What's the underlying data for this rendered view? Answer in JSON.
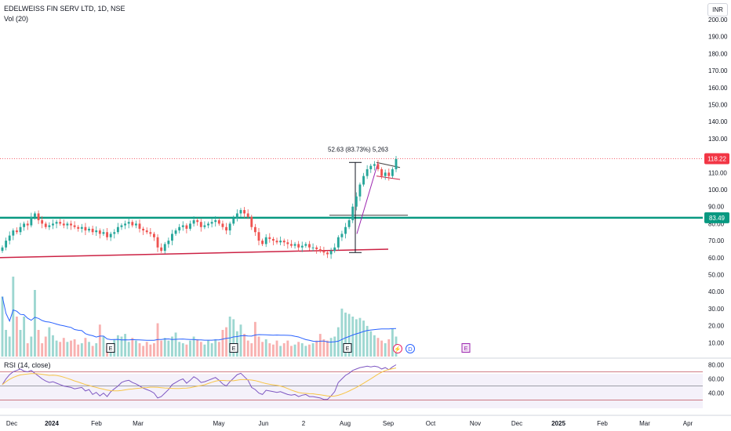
{
  "header": {
    "title": "EDELWEISS FIN SERV LTD, 1D, NSE",
    "volume_label": "Vol (20)",
    "currency": "INR"
  },
  "rsi_label": "RSI (14, close)",
  "measurement_label": "52.63 (83.73%) 5,263",
  "price_tags": {
    "last": "118.22",
    "level": "83.49"
  },
  "colors": {
    "up": "#26a69a",
    "down": "#ef5350",
    "level_line": "#089981",
    "trend_line": "#cc2244",
    "rsi_line": "#7e57c2",
    "rsi_ma": "#f7c548",
    "vol_ma": "#2962ff",
    "last_tag": "#f23645"
  },
  "markers": {
    "earnings": "E",
    "dividend": "D",
    "split": "⚡"
  },
  "chart_data": {
    "type": "candlestick",
    "y_ticks": [
      "200.00",
      "190.00",
      "180.00",
      "170.00",
      "160.00",
      "150.00",
      "140.00",
      "130.00",
      "120.00",
      "110.00",
      "100.00",
      "90.00",
      "80.00",
      "70.00",
      "60.00",
      "50.00",
      "40.00",
      "30.00",
      "20.00",
      "10.00"
    ],
    "ylim": [
      5,
      205
    ],
    "x_ticks": [
      "Dec",
      "2024",
      "Feb",
      "Mar",
      "May",
      "Jun",
      "2",
      "Aug",
      "Sep",
      "Oct",
      "Nov",
      "Dec",
      "2025",
      "Feb",
      "Mar",
      "Apr"
    ],
    "rsi_ticks": [
      "80.00",
      "60.00",
      "40.00"
    ],
    "rsi_range": [
      30,
      80
    ],
    "rsi_levels": [
      70,
      50,
      30
    ],
    "last_price": 118.22,
    "horizontal_level": 83.49,
    "measurement": {
      "from": 63,
      "to": 116
    },
    "close": [
      66,
      70,
      73,
      76,
      75,
      78,
      80,
      79,
      84,
      86,
      82,
      80,
      78,
      79,
      80,
      81,
      80,
      79,
      80,
      79,
      78,
      77,
      78,
      76,
      77,
      75,
      76,
      74,
      75,
      72,
      74,
      75,
      78,
      79,
      80,
      81,
      79,
      80,
      77,
      76,
      75,
      74,
      72,
      66,
      64,
      68,
      70,
      74,
      76,
      78,
      79,
      77,
      80,
      82,
      81,
      78,
      79,
      80,
      81,
      82,
      80,
      78,
      76,
      80,
      83,
      86,
      88,
      86,
      84,
      78,
      75,
      70,
      68,
      72,
      71,
      70,
      69,
      70,
      69,
      68,
      67,
      68,
      66,
      67,
      68,
      66,
      66,
      65,
      64,
      63,
      62,
      64,
      66,
      72,
      74,
      78,
      82,
      90,
      96,
      103,
      108,
      112,
      114,
      115,
      112,
      108,
      110,
      108,
      112,
      118
    ],
    "volume": [
      4.5,
      2,
      1.5,
      6,
      3,
      2,
      3,
      1,
      1.5,
      5,
      2,
      1,
      1.5,
      2.2,
      1.6,
      1.2,
      1.1,
      1.4,
      1.1,
      1.2,
      1.3,
      0.9,
      1,
      1.4,
      1.1,
      0.8,
      1,
      2.4,
      1.5,
      0.8,
      0.9,
      1.3,
      1.6,
      1.5,
      1.7,
      1.1,
      1.4,
      1.2,
      1,
      0.8,
      1.1,
      0.9,
      1,
      2.5,
      1.2,
      1.4,
      1.2,
      1.5,
      1.8,
      1.1,
      1,
      0.9,
      1.2,
      1.5,
      1.3,
      1.1,
      0.9,
      1.2,
      1,
      1.3,
      1.1,
      2,
      2.2,
      3,
      2.8,
      1.9,
      2.4,
      1.7,
      1.2,
      1,
      2.6,
      1.5,
      1.1,
      1.3,
      1,
      0.9,
      1.2,
      0.8,
      1,
      1.2,
      0.8,
      0.9,
      1.1,
      1,
      0.8,
      0.9,
      1,
      1.2,
      1.7,
      1.3,
      1.2,
      1.4,
      1.5,
      2.2,
      3.6,
      3.3,
      3.2,
      3,
      2.8,
      2.9,
      2.7,
      2.3,
      1.9,
      1.6,
      1.4,
      1.2,
      1,
      1.3,
      2.1,
      1.5
    ],
    "rsi": [
      52,
      60,
      66,
      70,
      72,
      74,
      71,
      70,
      72,
      68,
      64,
      60,
      57,
      55,
      56,
      54,
      52,
      50,
      49,
      48,
      46,
      47,
      48,
      43,
      45,
      38,
      41,
      36,
      40,
      35,
      42,
      46,
      50,
      55,
      57,
      58,
      55,
      53,
      50,
      47,
      45,
      43,
      40,
      33,
      35,
      40,
      45,
      52,
      55,
      58,
      60,
      54,
      58,
      63,
      60,
      55,
      56,
      58,
      60,
      62,
      58,
      53,
      50,
      56,
      61,
      66,
      68,
      63,
      58,
      48,
      45,
      40,
      38,
      44,
      43,
      42,
      41,
      42,
      40,
      38,
      37,
      38,
      35,
      37,
      38,
      35,
      35,
      34,
      33,
      31,
      31,
      36,
      42,
      55,
      60,
      65,
      68,
      72,
      74,
      76,
      77,
      78,
      77,
      78,
      77,
      74,
      76,
      73,
      77,
      80
    ]
  }
}
